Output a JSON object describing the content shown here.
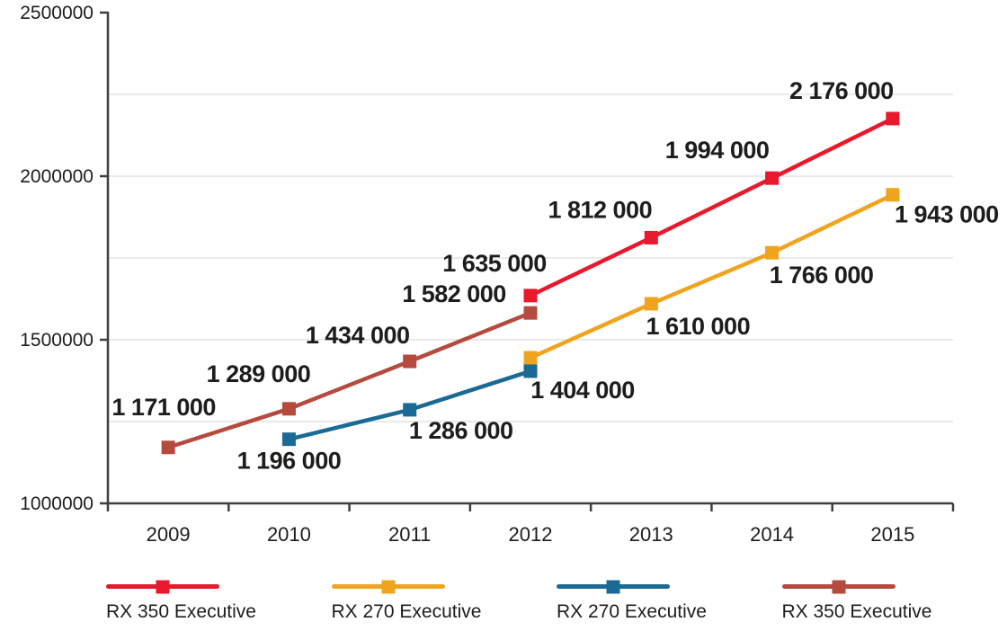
{
  "chart_data": {
    "type": "line",
    "title": "",
    "x_categories": [
      "2009",
      "2010",
      "2011",
      "2012",
      "2013",
      "2014",
      "2015"
    ],
    "y_axis": {
      "min": 1000000,
      "max": 2500000,
      "tick_values": [
        1000000,
        1500000,
        2000000,
        2500000
      ],
      "tick_labels": [
        "1000000",
        "1500000",
        "2000000",
        "2500000"
      ],
      "grid_step": 250000
    },
    "grid": true,
    "legend_position": "bottom",
    "text_color": "#1d1d1b",
    "axis_color": "#3f3f3f",
    "grid_color": "#e3e3e3",
    "series": [
      {
        "name": "RX 350 Executive",
        "color": "#e8192d",
        "points": [
          {
            "x": "2012",
            "y": 1635000,
            "label": "1 635 000",
            "dx": -40,
            "dy": -27
          },
          {
            "x": "2013",
            "y": 1812000,
            "label": "1 812 000",
            "dx": -57,
            "dy": -22
          },
          {
            "x": "2014",
            "y": 1994000,
            "label": "1 994 000",
            "dx": -61,
            "dy": -22
          },
          {
            "x": "2015",
            "y": 2176000,
            "label": "2 176 000",
            "dx": -57,
            "dy": -22
          }
        ]
      },
      {
        "name": "RX 270 Executive",
        "color": "#f0a41e",
        "points": [
          {
            "x": "2012",
            "y": 1445000,
            "label": "",
            "dx": 0,
            "dy": 0
          },
          {
            "x": "2013",
            "y": 1610000,
            "label": "1 610 000",
            "dx": 52,
            "dy": 34
          },
          {
            "x": "2014",
            "y": 1766000,
            "label": "1 766 000",
            "dx": 55,
            "dy": 34
          },
          {
            "x": "2015",
            "y": 1943000,
            "label": "1 943 000",
            "dx": 60,
            "dy": 31
          }
        ]
      },
      {
        "name": "RX 270 Executive",
        "color": "#1b6a96",
        "points": [
          {
            "x": "2010",
            "y": 1196000,
            "label": "1 196 000",
            "dx": 0,
            "dy": 33
          },
          {
            "x": "2011",
            "y": 1286000,
            "label": "1 286 000",
            "dx": 57,
            "dy": 32
          },
          {
            "x": "2012",
            "y": 1404000,
            "label": "1 404 000",
            "dx": 58,
            "dy": 30
          }
        ]
      },
      {
        "name": "RX 350 Executive",
        "color": "#b54a3f",
        "points": [
          {
            "x": "2009",
            "y": 1171000,
            "label": "1 171 000",
            "dx": -5,
            "dy": -36
          },
          {
            "x": "2010",
            "y": 1289000,
            "label": "1 289 000",
            "dx": -34,
            "dy": -30
          },
          {
            "x": "2011",
            "y": 1434000,
            "label": "1 434 000",
            "dx": -58,
            "dy": -20
          },
          {
            "x": "2012",
            "y": 1582000,
            "label": "1 582 000",
            "dx": -85,
            "dy": -12
          }
        ]
      }
    ],
    "legend": [
      {
        "label": "RX 350 Executive",
        "color": "#e8192d"
      },
      {
        "label": "RX 270 Executive",
        "color": "#f0a41e"
      },
      {
        "label": "RX 270 Executive",
        "color": "#1b6a96"
      },
      {
        "label": "RX 350 Executive",
        "color": "#b54a3f"
      }
    ]
  }
}
